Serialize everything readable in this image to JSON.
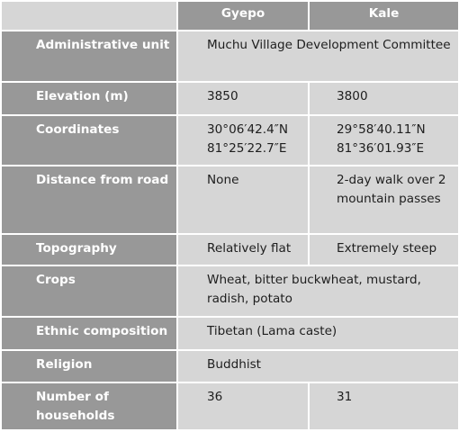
{
  "table": {
    "columns": [
      "",
      "Gyepo",
      "Kale"
    ],
    "rows": [
      {
        "label": "Administrative unit",
        "merged": "Muchu Village Development Committee"
      },
      {
        "label": "Elevation (m)",
        "gyepo": "3850",
        "kale": "3800"
      },
      {
        "label": "Coordinates",
        "gyepo": "30°06′42.4″N 81°25′22.7″E",
        "gyepo_line1": "30°06′42.4″N",
        "gyepo_line2": "81°25′22.7″E",
        "kale": "29°58′40.11″N 81°36′01.93″E",
        "kale_line1": "29°58′40.11″N",
        "kale_line2": "81°36′01.93″E"
      },
      {
        "label": "Distance from road",
        "gyepo": "None",
        "kale": "2-day walk over 2 mountain passes"
      },
      {
        "label": "Topography",
        "gyepo": "Relatively flat",
        "kale": "Extremely steep"
      },
      {
        "label": "Crops",
        "merged": "Wheat, bitter buckwheat, mustard, radish, potato"
      },
      {
        "label": "Ethnic composition",
        "merged": "Tibetan (Lama caste)"
      },
      {
        "label": "Religion",
        "merged": "Buddhist"
      },
      {
        "label": "Number of households",
        "gyepo": "36",
        "kale": "31"
      }
    ]
  }
}
